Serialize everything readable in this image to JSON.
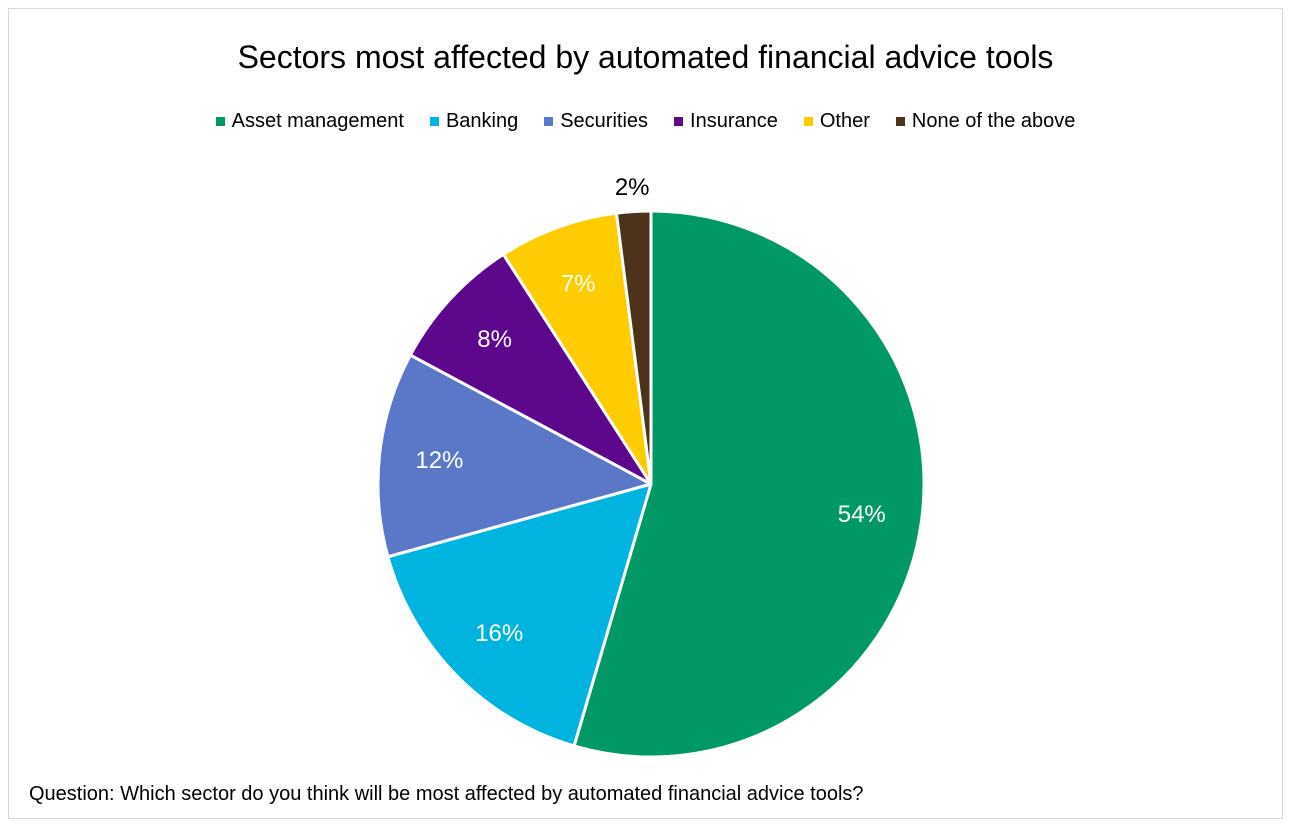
{
  "chart_data": {
    "type": "pie",
    "title": "Sectors most affected by automated financial advice tools",
    "legend_position": "top",
    "categories": [
      "Asset management",
      "Banking",
      "Securities",
      "Insurance",
      "Other",
      "None of the above"
    ],
    "values": [
      54,
      16,
      12,
      8,
      7,
      2
    ],
    "data_labels": [
      "54%",
      "16%",
      "12%",
      "8%",
      "7%",
      "2%"
    ],
    "colors": [
      "#009966",
      "#00b4e0",
      "#5b78c8",
      "#5c078c",
      "#ffcc00",
      "#4d3319"
    ],
    "label_colors": [
      "#ffffff",
      "#ffffff",
      "#ffffff",
      "#ffffff",
      "#ffffff",
      "#000000"
    ],
    "start_angle_deg": 0,
    "direction": "clockwise"
  },
  "footnote": "Question: Which sector do you think will be most affected by automated financial advice tools?"
}
